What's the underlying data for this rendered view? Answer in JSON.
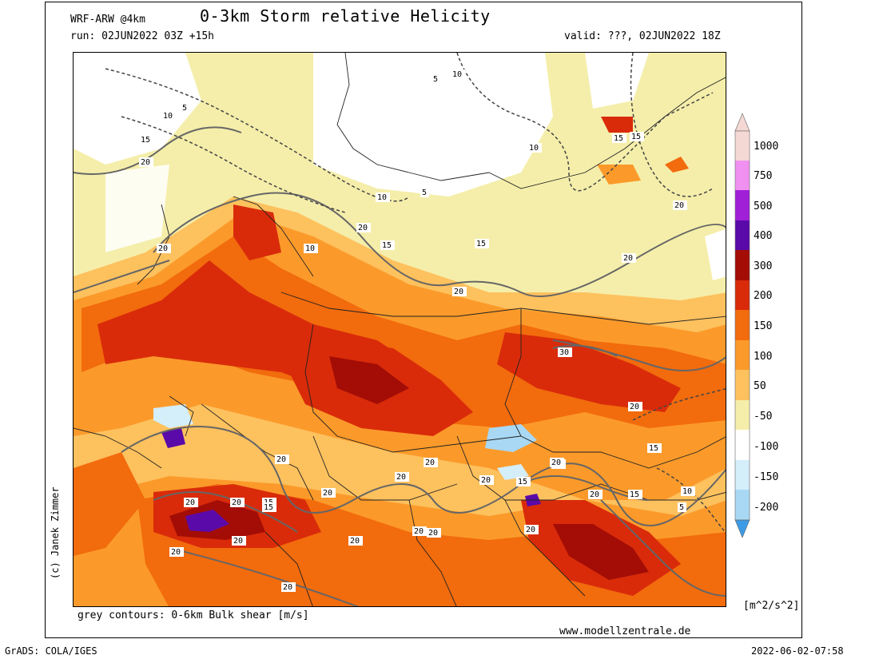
{
  "header": {
    "model": "WRF-ARW @4km",
    "title": "0-3km Storm relative Helicity",
    "run": "run: 02JUN2022 03Z +15h",
    "valid": "valid: ???, 02JUN2022 18Z"
  },
  "map": {
    "contour_labels": [
      "5",
      "10",
      "15",
      "20",
      "20",
      "15",
      "10",
      "5",
      "10",
      "15",
      "20",
      "15",
      "10",
      "5",
      "10",
      "15",
      "20",
      "20",
      "20",
      "15",
      "20",
      "15",
      "20",
      "20",
      "20",
      "30",
      "20",
      "20",
      "15",
      "20",
      "20",
      "15",
      "20",
      "20",
      "20",
      "20",
      "20",
      "20",
      "15",
      "10",
      "15",
      "10",
      "5",
      "15",
      "20",
      "20",
      "20",
      "20"
    ],
    "colors": {
      "neg_200": "#3c9be6",
      "neg_150": "#6cb4ee",
      "neg_100": "#a8d8f4",
      "neg_50": "#d4eefa",
      "zero": "#ffffff",
      "p50": "#f5eeaa",
      "p100": "#fdc15e",
      "p150": "#fb9a2a",
      "p200": "#f26b0d",
      "p300": "#d92b0a",
      "p400": "#a30d06",
      "p500": "#5a0aa8",
      "p750": "#a020d8",
      "p1000": "#f090f0",
      "top": "#f4d8d4"
    }
  },
  "colorbar": {
    "labels": [
      "1000",
      "750",
      "500",
      "400",
      "300",
      "200",
      "150",
      "100",
      "50",
      "-50",
      "-100",
      "-150",
      "-200"
    ],
    "units": "[m^2/s^2]"
  },
  "footer": {
    "copyright": "(c) Janek Zimmer",
    "contours_note": "grey contours: 0-6km Bulk shear [m/s]",
    "website": "www.modellzentrale.de",
    "grads": "GrADS: COLA/IGES",
    "timestamp": "2022-06-02-07:58"
  }
}
